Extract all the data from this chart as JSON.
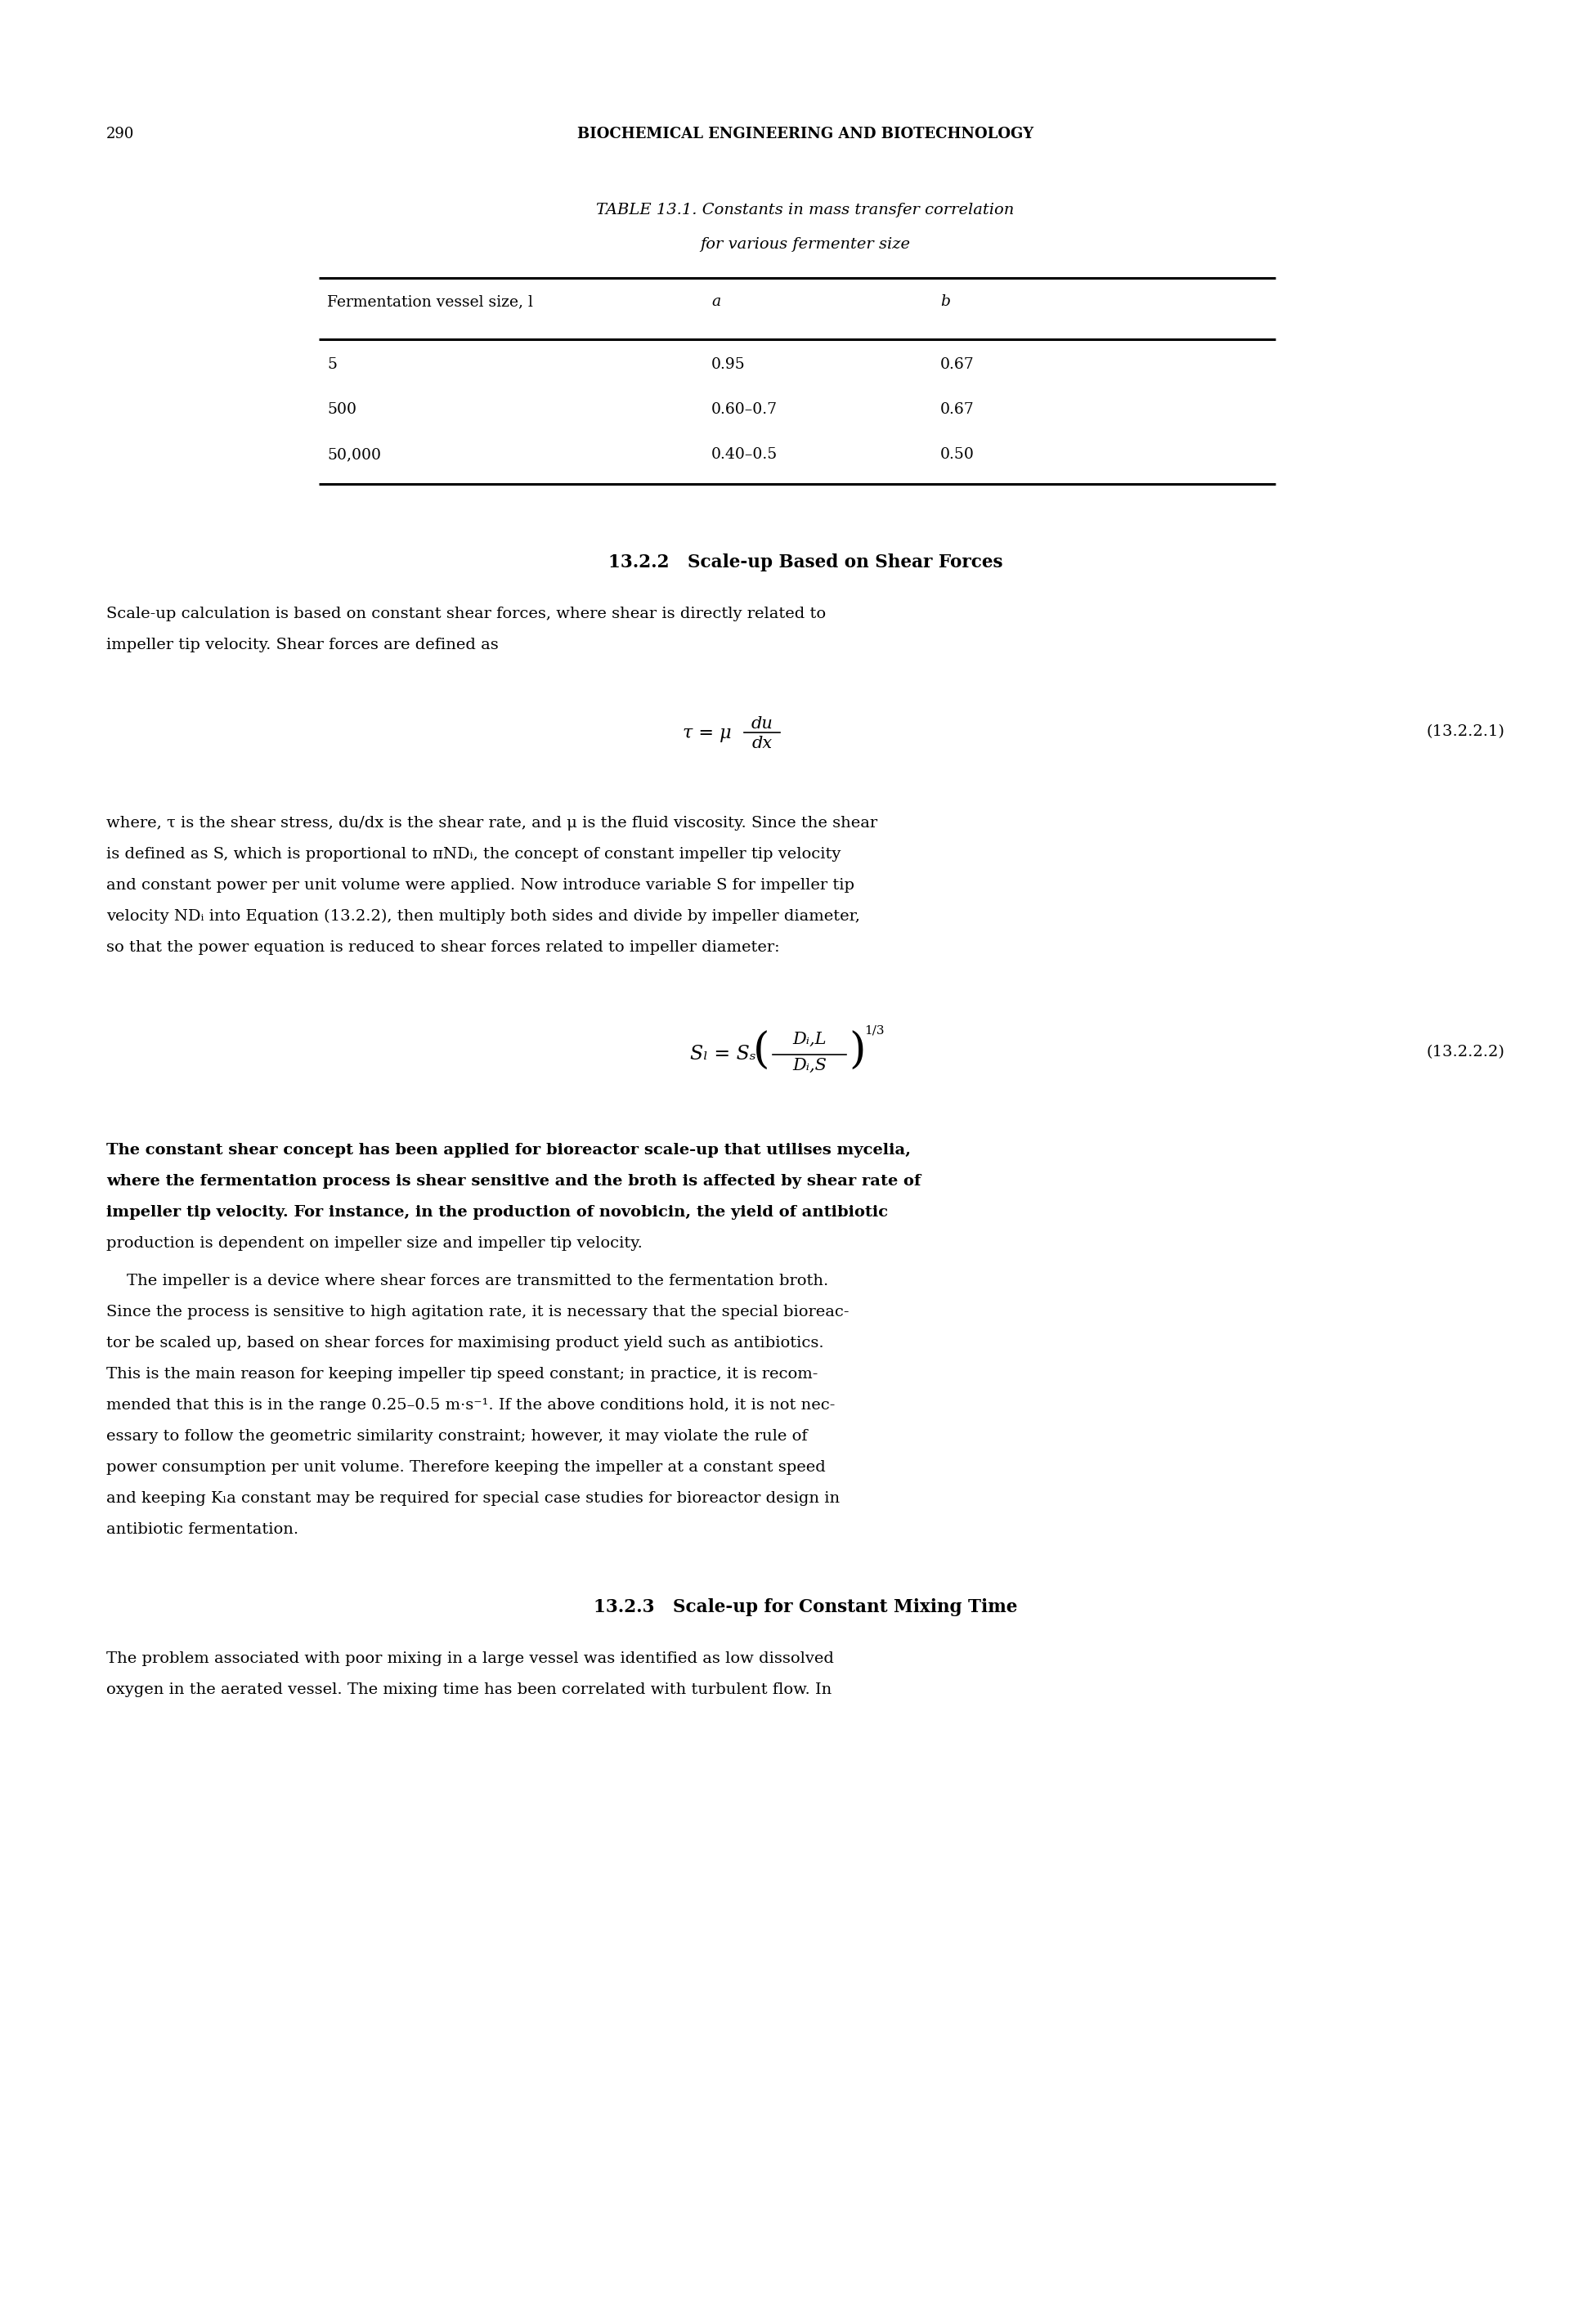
{
  "page_number": "290",
  "header": "BIOCHEMICAL ENGINEERING AND BIOTECHNOLOGY",
  "table_title_prefix": "TABLE 13.1.",
  "table_title_italic": " Constants in mass transfer correlation",
  "table_title_line2": "for various fermenter size",
  "table_col1_header": "Fermentation vessel size, l",
  "table_col2_header": "a",
  "table_col3_header": "b",
  "table_rows": [
    [
      "5",
      "0.95",
      "0.67"
    ],
    [
      "500",
      "0.60–0.7",
      "0.67"
    ],
    [
      "50,000",
      "0.40–0.5",
      "0.50"
    ]
  ],
  "section_222": "13.2.2   Scale-up Based on Shear Forces",
  "para1_lines": [
    "Scale-up calculation is based on constant shear forces, where shear is directly related to",
    "impeller tip velocity. Shear forces are defined as"
  ],
  "eq1_label": "(13.2.2.1)",
  "para2_lines": [
    "where, τ is the shear stress, du/dx is the shear rate, and μ is the fluid viscosity. Since the shear",
    "is defined as S, which is proportional to πNDᵢ, the concept of constant impeller tip velocity",
    "and constant power per unit volume were applied. Now introduce variable S for impeller tip",
    "velocity NDᵢ into Equation (13.2.2), then multiply both sides and divide by impeller diameter,",
    "so that the power equation is reduced to shear forces related to impeller diameter:"
  ],
  "eq2_label": "(13.2.2.2)",
  "para3_lines": [
    "The constant shear concept has been applied for bioreactor scale-up that utilises mycelia,",
    "where the fermentation process is shear sensitive and the broth is affected by shear rate of",
    "impeller tip velocity. For instance, in the production of novobicin, the yield of antibiotic",
    "production is dependent on impeller size and impeller tip velocity."
  ],
  "para3_bold_count": 3,
  "para4_lines": [
    "    The impeller is a device where shear forces are transmitted to the fermentation broth.",
    "Since the process is sensitive to high agitation rate, it is necessary that the special bioreac-",
    "tor be scaled up, based on shear forces for maximising product yield such as antibiotics.",
    "This is the main reason for keeping impeller tip speed constant; in practice, it is recom-",
    "mended that this is in the range 0.25–0.5 m·s⁻¹. If the above conditions hold, it is not nec-",
    "essary to follow the geometric similarity constraint; however, it may violate the rule of",
    "power consumption per unit volume. Therefore keeping the impeller at a constant speed",
    "and keeping Kₗa constant may be required for special case studies for bioreactor design in",
    "antibiotic fermentation."
  ],
  "section_223": "13.2.3   Scale-up for Constant Mixing Time",
  "para5_lines": [
    "The problem associated with poor mixing in a large vessel was identified as low dissolved",
    "oxygen in the aerated vessel. The mixing time has been correlated with turbulent flow. In"
  ]
}
